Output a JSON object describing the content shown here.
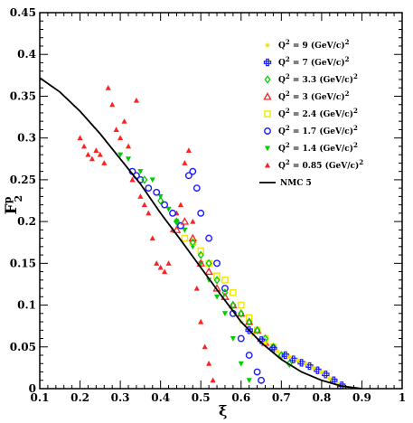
{
  "chart_data": {
    "type": "scatter",
    "xlabel": "ξ",
    "ylabel": "F",
    "ylabel_sup": "p",
    "ylabel_sub": "2",
    "xlim": [
      0.1,
      1.0
    ],
    "ylim": [
      0,
      0.45
    ],
    "x_ticks": [
      "0.1",
      "0.2",
      "0.3",
      "0.4",
      "0.5",
      "0.6",
      "0.7",
      "0.8",
      "0.9",
      "1"
    ],
    "y_ticks": [
      "0",
      "0.05",
      "0.1",
      "0.15",
      "0.2",
      "0.25",
      "0.3",
      "0.35",
      "0.4",
      "0.45"
    ],
    "legend_position": "top-right",
    "series": [
      {
        "name": "Q² = 9 (GeV/c)²",
        "legend_text": "Q",
        "legend_q": "= 9 (GeV/c)",
        "marker": "star",
        "color": "#f2e600",
        "x": [
          0.6,
          0.63,
          0.66,
          0.69,
          0.72,
          0.74,
          0.76,
          0.78,
          0.8,
          0.82,
          0.84
        ],
        "y": [
          0.08,
          0.065,
          0.055,
          0.045,
          0.038,
          0.034,
          0.03,
          0.025,
          0.02,
          0.012,
          0.006
        ]
      },
      {
        "name": "Q² = 7 (GeV/c)²",
        "legend_text": "Q",
        "legend_q": "= 7 (GeV/c)",
        "marker": "plus",
        "color": "#1a1aff",
        "x": [
          0.62,
          0.65,
          0.68,
          0.71,
          0.73,
          0.75,
          0.77,
          0.79,
          0.81,
          0.83,
          0.85
        ],
        "y": [
          0.07,
          0.058,
          0.048,
          0.04,
          0.035,
          0.031,
          0.027,
          0.022,
          0.017,
          0.01,
          0.004
        ]
      },
      {
        "name": "Q² = 3.3 (GeV/c)²",
        "legend_text": "Q",
        "legend_q": "= 3.3 (GeV/c)",
        "marker": "diamond",
        "color": "#00cc00",
        "x": [
          0.36,
          0.4,
          0.44,
          0.48,
          0.5,
          0.52,
          0.54,
          0.56,
          0.58,
          0.6,
          0.62,
          0.64,
          0.66,
          0.68,
          0.7,
          0.72
        ],
        "y": [
          0.25,
          0.225,
          0.2,
          0.175,
          0.16,
          0.15,
          0.13,
          0.115,
          0.1,
          0.09,
          0.08,
          0.07,
          0.06,
          0.05,
          0.04,
          0.03
        ]
      },
      {
        "name": "Q² = 3 (GeV/c)²",
        "legend_text": "Q",
        "legend_q": "= 3 (GeV/c)",
        "marker": "triangle-open",
        "color": "#ff2020",
        "x": [
          0.44,
          0.46,
          0.48,
          0.5,
          0.52,
          0.54,
          0.56,
          0.58,
          0.6,
          0.62,
          0.64,
          0.66
        ],
        "y": [
          0.19,
          0.2,
          0.18,
          0.15,
          0.14,
          0.12,
          0.11,
          0.1,
          0.09,
          0.08,
          0.07,
          0.055
        ]
      },
      {
        "name": "Q² = 2.4 (GeV/c)²",
        "legend_text": "Q",
        "legend_q": "= 2.4 (GeV/c)",
        "marker": "square-open",
        "color": "#f2e600",
        "x": [
          0.46,
          0.48,
          0.5,
          0.52,
          0.54,
          0.56,
          0.58,
          0.6,
          0.62,
          0.64,
          0.66,
          0.68,
          0.7
        ],
        "y": [
          0.18,
          0.175,
          0.165,
          0.15,
          0.135,
          0.13,
          0.115,
          0.1,
          0.085,
          0.07,
          0.06,
          0.05,
          0.04
        ]
      },
      {
        "name": "Q² = 1.7 (GeV/c)²",
        "legend_text": "Q",
        "legend_q": "= 1.7 (GeV/c)",
        "marker": "circle-open",
        "color": "#1a1aff",
        "x": [
          0.33,
          0.34,
          0.35,
          0.37,
          0.39,
          0.41,
          0.43,
          0.45,
          0.47,
          0.48,
          0.49,
          0.5,
          0.52,
          0.54,
          0.56,
          0.58,
          0.6,
          0.62,
          0.64,
          0.65
        ],
        "y": [
          0.26,
          0.255,
          0.25,
          0.24,
          0.235,
          0.22,
          0.21,
          0.195,
          0.255,
          0.26,
          0.24,
          0.21,
          0.18,
          0.15,
          0.12,
          0.09,
          0.06,
          0.04,
          0.02,
          0.01
        ]
      },
      {
        "name": "Q² = 1.4 (GeV/c)²",
        "legend_text": "Q",
        "legend_q": "= 1.4 (GeV/c)",
        "marker": "triangle-down",
        "color": "#00cc00",
        "x": [
          0.3,
          0.32,
          0.35,
          0.38,
          0.4,
          0.42,
          0.44,
          0.46,
          0.48,
          0.5,
          0.52,
          0.54,
          0.56,
          0.58,
          0.6,
          0.62
        ],
        "y": [
          0.28,
          0.275,
          0.26,
          0.25,
          0.23,
          0.215,
          0.2,
          0.19,
          0.17,
          0.15,
          0.13,
          0.11,
          0.09,
          0.06,
          0.03,
          0.01
        ]
      },
      {
        "name": "Q² = 0.85 (GeV/c)²",
        "legend_text": "Q",
        "legend_q": "= 0.85 (GeV/c)",
        "marker": "triangle",
        "color": "#ff2020",
        "x": [
          0.2,
          0.21,
          0.22,
          0.23,
          0.24,
          0.25,
          0.26,
          0.27,
          0.28,
          0.29,
          0.3,
          0.31,
          0.32,
          0.33,
          0.34,
          0.35,
          0.36,
          0.37,
          0.38,
          0.39,
          0.4,
          0.41,
          0.42,
          0.43,
          0.44,
          0.45,
          0.46,
          0.47,
          0.48,
          0.49,
          0.5,
          0.51,
          0.52,
          0.53
        ],
        "y": [
          0.3,
          0.29,
          0.28,
          0.275,
          0.285,
          0.28,
          0.27,
          0.36,
          0.34,
          0.31,
          0.3,
          0.32,
          0.29,
          0.25,
          0.345,
          0.23,
          0.22,
          0.21,
          0.18,
          0.15,
          0.145,
          0.14,
          0.15,
          0.19,
          0.21,
          0.22,
          0.27,
          0.285,
          0.2,
          0.12,
          0.08,
          0.05,
          0.03,
          0.01
        ]
      }
    ],
    "curves": [
      {
        "name": "NMC 5",
        "color": "#000000",
        "x": [
          0.1,
          0.15,
          0.2,
          0.25,
          0.3,
          0.35,
          0.4,
          0.45,
          0.5,
          0.55,
          0.6,
          0.65,
          0.7,
          0.75,
          0.8,
          0.85,
          0.9
        ],
        "y": [
          0.372,
          0.355,
          0.332,
          0.305,
          0.275,
          0.245,
          0.21,
          0.178,
          0.145,
          0.112,
          0.08,
          0.055,
          0.035,
          0.02,
          0.01,
          0.003,
          0.0
        ]
      }
    ]
  }
}
